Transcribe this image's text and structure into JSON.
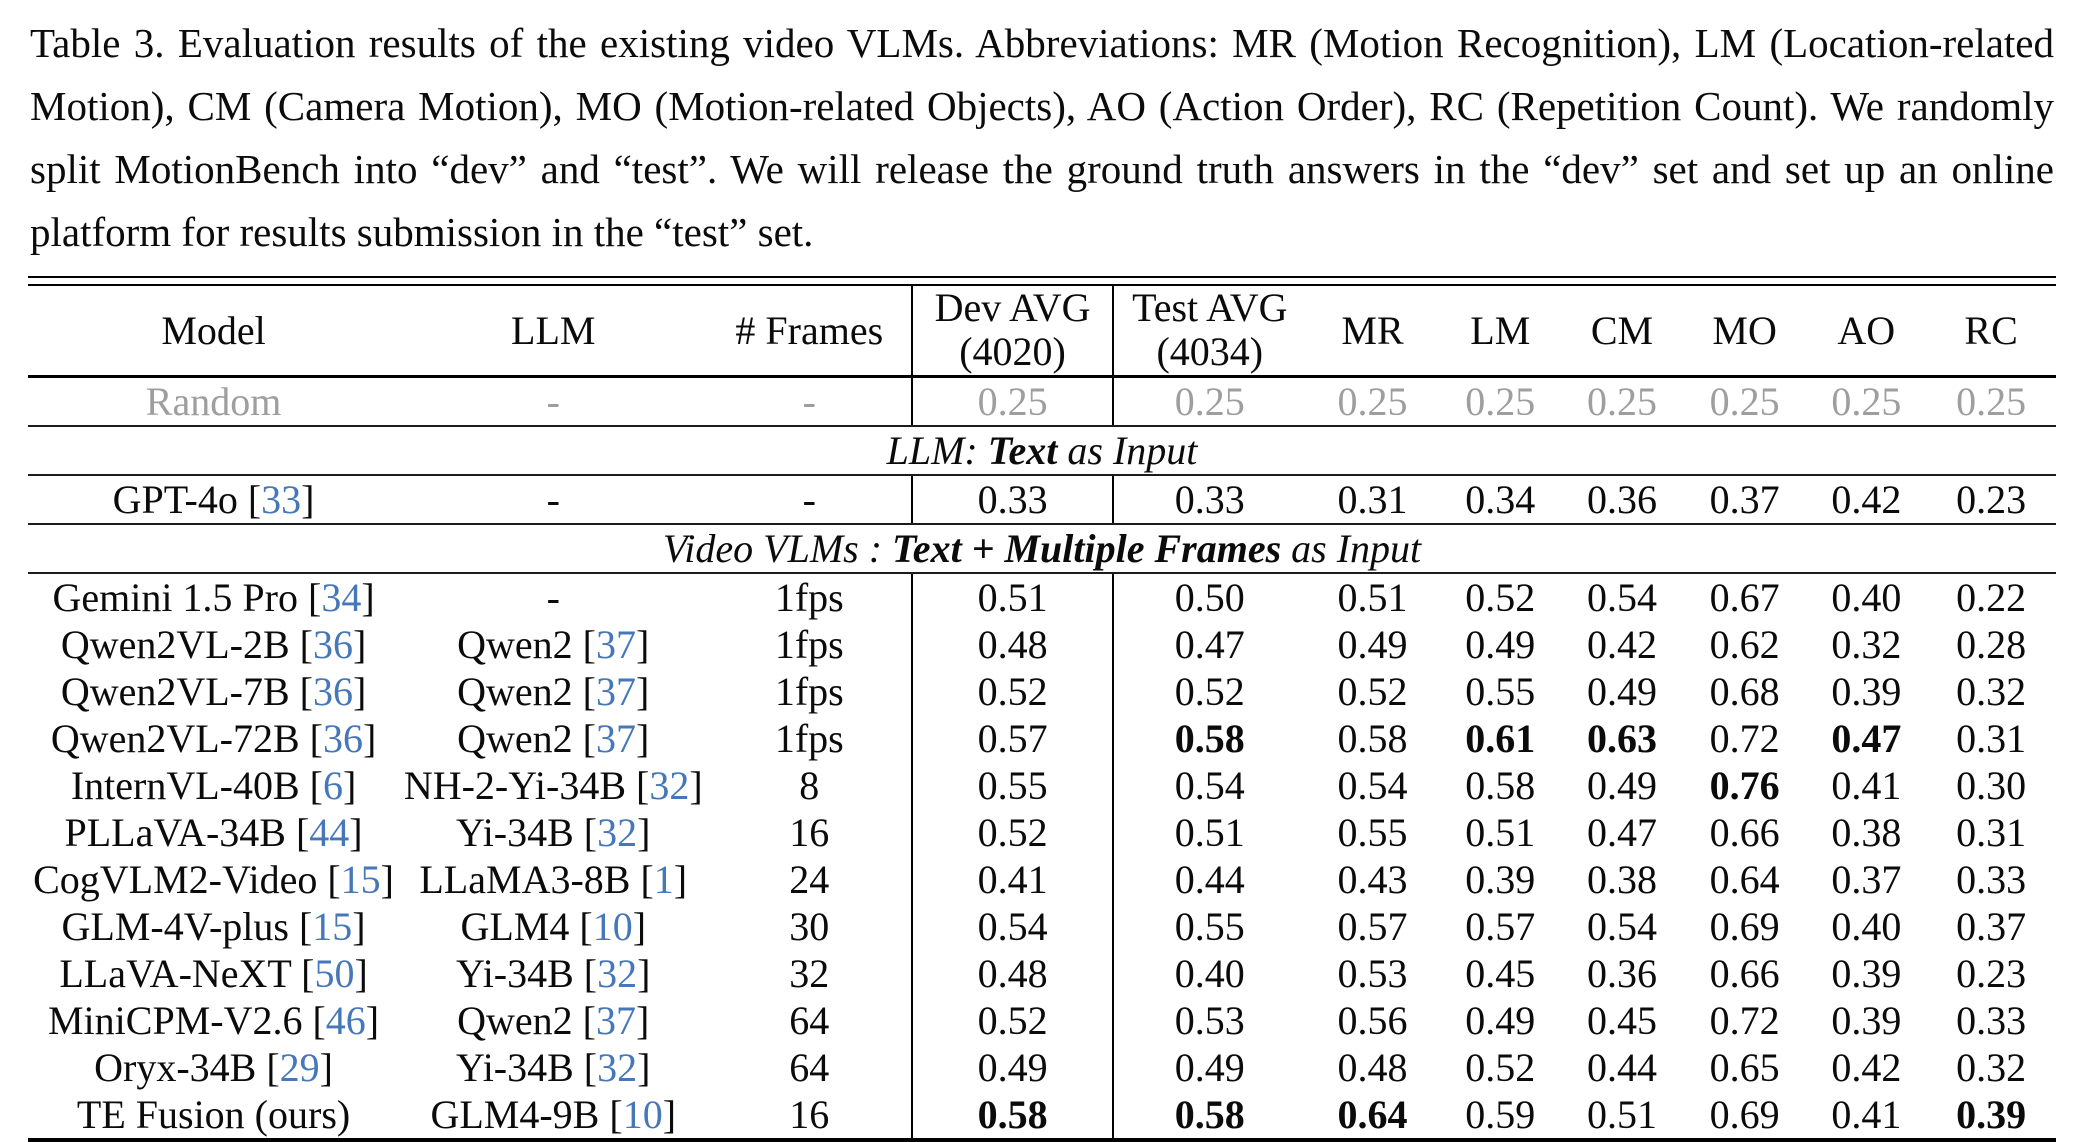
{
  "caption": "Table 3.  Evaluation results of the existing video VLMs.  Abbreviations: MR (Motion Recognition), LM (Location-related Motion), CM (Camera Motion), MO (Motion-related Objects), AO (Action Order), RC (Repetition Count).  We randomly split MotionBench into “dev” and “test”.  We will release the ground truth answers in the “dev” set and set up an online platform for results submission in the “test” set.",
  "colors": {
    "citation_blue": "#4677b8",
    "random_gray": "#9e9e9e"
  },
  "table": {
    "header": {
      "model": "Model",
      "llm": "LLM",
      "frames": "# Frames",
      "dev_line1": "Dev AVG",
      "dev_line2": "(4020)",
      "test_line1": "Test AVG",
      "test_line2": "(4034)",
      "mr": "MR",
      "lm": "LM",
      "cm": "CM",
      "mo": "MO",
      "ao": "AO",
      "rc": "RC"
    },
    "random_row": {
      "model": "Random",
      "llm": "-",
      "frames": "-",
      "values": [
        "0.25",
        "0.25",
        "0.25",
        "0.25",
        "0.25",
        "0.25",
        "0.25",
        "0.25"
      ]
    },
    "sections": [
      {
        "prefix": "LLM: ",
        "bold": "Text",
        "suffix": " as Input"
      },
      {
        "prefix": "Video VLMs : ",
        "bold": "Text + Multiple Frames",
        "suffix": " as Input"
      }
    ],
    "llm_rows": [
      {
        "model": "GPT-4o",
        "model_cite": "33",
        "llm": "-",
        "llm_cite": null,
        "frames": "-",
        "values": [
          "0.33",
          "0.33",
          "0.31",
          "0.34",
          "0.36",
          "0.37",
          "0.42",
          "0.23"
        ],
        "bold": [
          false,
          false,
          false,
          false,
          false,
          false,
          false,
          false
        ]
      }
    ],
    "vlm_rows": [
      {
        "model": "Gemini 1.5 Pro",
        "model_cite": "34",
        "llm": "-",
        "llm_cite": null,
        "frames": "1fps",
        "values": [
          "0.51",
          "0.50",
          "0.51",
          "0.52",
          "0.54",
          "0.67",
          "0.40",
          "0.22"
        ],
        "bold": [
          false,
          false,
          false,
          false,
          false,
          false,
          false,
          false
        ]
      },
      {
        "model": "Qwen2VL-2B",
        "model_cite": "36",
        "llm": "Qwen2",
        "llm_cite": "37",
        "frames": "1fps",
        "values": [
          "0.48",
          "0.47",
          "0.49",
          "0.49",
          "0.42",
          "0.62",
          "0.32",
          "0.28"
        ],
        "bold": [
          false,
          false,
          false,
          false,
          false,
          false,
          false,
          false
        ]
      },
      {
        "model": "Qwen2VL-7B",
        "model_cite": "36",
        "llm": "Qwen2",
        "llm_cite": "37",
        "frames": "1fps",
        "values": [
          "0.52",
          "0.52",
          "0.52",
          "0.55",
          "0.49",
          "0.68",
          "0.39",
          "0.32"
        ],
        "bold": [
          false,
          false,
          false,
          false,
          false,
          false,
          false,
          false
        ]
      },
      {
        "model": "Qwen2VL-72B",
        "model_cite": "36",
        "llm": "Qwen2",
        "llm_cite": "37",
        "frames": "1fps",
        "values": [
          "0.57",
          "0.58",
          "0.58",
          "0.61",
          "0.63",
          "0.72",
          "0.47",
          "0.31"
        ],
        "bold": [
          false,
          true,
          false,
          true,
          true,
          false,
          true,
          false
        ]
      },
      {
        "model": "InternVL-40B",
        "model_cite": "6",
        "llm": "NH-2-Yi-34B",
        "llm_cite": "32",
        "frames": "8",
        "values": [
          "0.55",
          "0.54",
          "0.54",
          "0.58",
          "0.49",
          "0.76",
          "0.41",
          "0.30"
        ],
        "bold": [
          false,
          false,
          false,
          false,
          false,
          true,
          false,
          false
        ]
      },
      {
        "model": "PLLaVA-34B",
        "model_cite": "44",
        "llm": "Yi-34B",
        "llm_cite": "32",
        "frames": "16",
        "values": [
          "0.52",
          "0.51",
          "0.55",
          "0.51",
          "0.47",
          "0.66",
          "0.38",
          "0.31"
        ],
        "bold": [
          false,
          false,
          false,
          false,
          false,
          false,
          false,
          false
        ]
      },
      {
        "model": "CogVLM2-Video",
        "model_cite": "15",
        "llm": "LLaMA3-8B",
        "llm_cite": "1",
        "frames": "24",
        "values": [
          "0.41",
          "0.44",
          "0.43",
          "0.39",
          "0.38",
          "0.64",
          "0.37",
          "0.33"
        ],
        "bold": [
          false,
          false,
          false,
          false,
          false,
          false,
          false,
          false
        ]
      },
      {
        "model": "GLM-4V-plus",
        "model_cite": "15",
        "llm": "GLM4",
        "llm_cite": "10",
        "frames": "30",
        "values": [
          "0.54",
          "0.55",
          "0.57",
          "0.57",
          "0.54",
          "0.69",
          "0.40",
          "0.37"
        ],
        "bold": [
          false,
          false,
          false,
          false,
          false,
          false,
          false,
          false
        ]
      },
      {
        "model": "LLaVA-NeXT",
        "model_cite": "50",
        "llm": "Yi-34B",
        "llm_cite": "32",
        "frames": "32",
        "values": [
          "0.48",
          "0.40",
          "0.53",
          "0.45",
          "0.36",
          "0.66",
          "0.39",
          "0.23"
        ],
        "bold": [
          false,
          false,
          false,
          false,
          false,
          false,
          false,
          false
        ]
      },
      {
        "model": "MiniCPM-V2.6",
        "model_cite": "46",
        "llm": "Qwen2",
        "llm_cite": "37",
        "frames": "64",
        "values": [
          "0.52",
          "0.53",
          "0.56",
          "0.49",
          "0.45",
          "0.72",
          "0.39",
          "0.33"
        ],
        "bold": [
          false,
          false,
          false,
          false,
          false,
          false,
          false,
          false
        ]
      },
      {
        "model": "Oryx-34B",
        "model_cite": "29",
        "llm": "Yi-34B",
        "llm_cite": "32",
        "frames": "64",
        "values": [
          "0.49",
          "0.49",
          "0.48",
          "0.52",
          "0.44",
          "0.65",
          "0.42",
          "0.32"
        ],
        "bold": [
          false,
          false,
          false,
          false,
          false,
          false,
          false,
          false
        ]
      },
      {
        "model": "TE Fusion (ours)",
        "model_cite": null,
        "llm": "GLM4-9B",
        "llm_cite": "10",
        "frames": "16",
        "values": [
          "0.58",
          "0.58",
          "0.64",
          "0.59",
          "0.51",
          "0.69",
          "0.41",
          "0.39"
        ],
        "bold": [
          true,
          true,
          true,
          false,
          false,
          false,
          false,
          true
        ]
      }
    ]
  }
}
